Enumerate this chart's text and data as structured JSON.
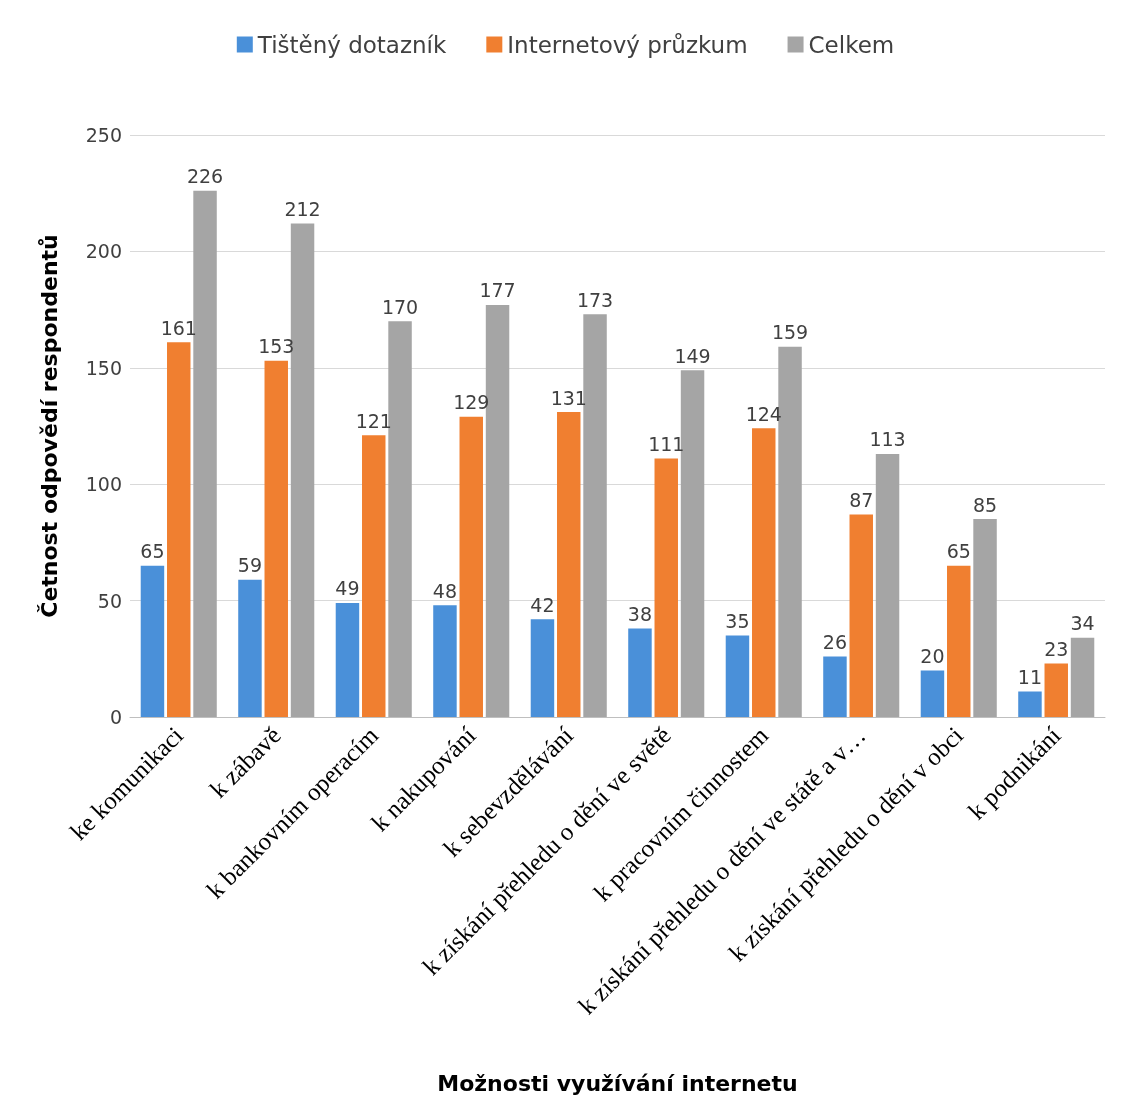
{
  "chart_data": {
    "type": "bar",
    "xlabel": "Možnosti využívání internetu",
    "ylabel": "Četnost odpovědí respondentů",
    "categories": [
      "ke komunikaci",
      "k zábavě",
      "k bankovním operacím",
      "k nakupování",
      "k sebevzdělávání",
      "k získání přehledu o dění ve světě",
      "k pracovním činnostem",
      "k získání přehledu o dění ve státě a v…",
      "k získání přehledu o dění v obci",
      "k podnikání"
    ],
    "series": [
      {
        "name": "Tištěný dotazník",
        "color": "#4a90d9",
        "values": [
          65,
          59,
          49,
          48,
          42,
          38,
          35,
          26,
          20,
          11
        ]
      },
      {
        "name": "Internetový průzkum",
        "color": "#f07f30",
        "values": [
          161,
          153,
          121,
          129,
          131,
          111,
          124,
          87,
          65,
          23
        ]
      },
      {
        "name": "Celkem",
        "color": "#a5a5a5",
        "values": [
          226,
          212,
          170,
          177,
          173,
          149,
          159,
          113,
          85,
          34
        ]
      }
    ],
    "ylim": [
      0,
      250
    ],
    "yticks": [
      0,
      50,
      100,
      150,
      200,
      250
    ],
    "grid": "y",
    "legend": "top",
    "data_labels": true
  }
}
